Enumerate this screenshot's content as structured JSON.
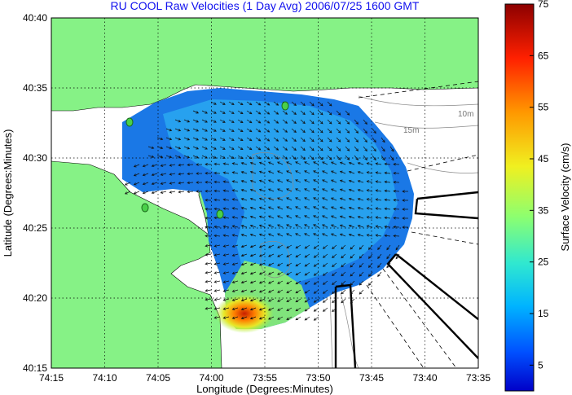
{
  "chart_data": {
    "type": "heatmap",
    "title": "RU COOL Raw Velocities (1 Day Avg) 2006/07/25 1600 GMT",
    "xlabel": "Longitude (Degrees:Minutes)",
    "ylabel": "Latitude (Degrees:Minutes)",
    "x_ticks": [
      "74:15",
      "74:10",
      "74:05",
      "74:00",
      "73:55",
      "73:50",
      "73:45",
      "73:40",
      "73:35"
    ],
    "y_ticks": [
      "40:40",
      "40:35",
      "40:30",
      "40:25",
      "40:20",
      "40:15"
    ],
    "xlim": [
      -74.25,
      -73.5833
    ],
    "ylim": [
      40.25,
      40.6667
    ],
    "grid": true,
    "colorbar": {
      "label": "Surface Velocity (cm/s)",
      "range": [
        0,
        75
      ],
      "ticks": [
        "75",
        "65",
        "55",
        "45",
        "35",
        "25",
        "15",
        "5"
      ],
      "colors": [
        "#0000c8",
        "#0050ff",
        "#00b4ff",
        "#30e8d0",
        "#8cff70",
        "#f0f020",
        "#ff9800",
        "#ff2000",
        "#8c0000"
      ]
    },
    "contour_labels": [
      "10m",
      "15m"
    ],
    "colors": {
      "land": "#86f286",
      "water_bg": "#ffffff",
      "low_speed": "#1a78e6",
      "mid_speed": "#28c8f0",
      "high_speed": "#e6e628",
      "max_speed": "#c81e00"
    }
  }
}
